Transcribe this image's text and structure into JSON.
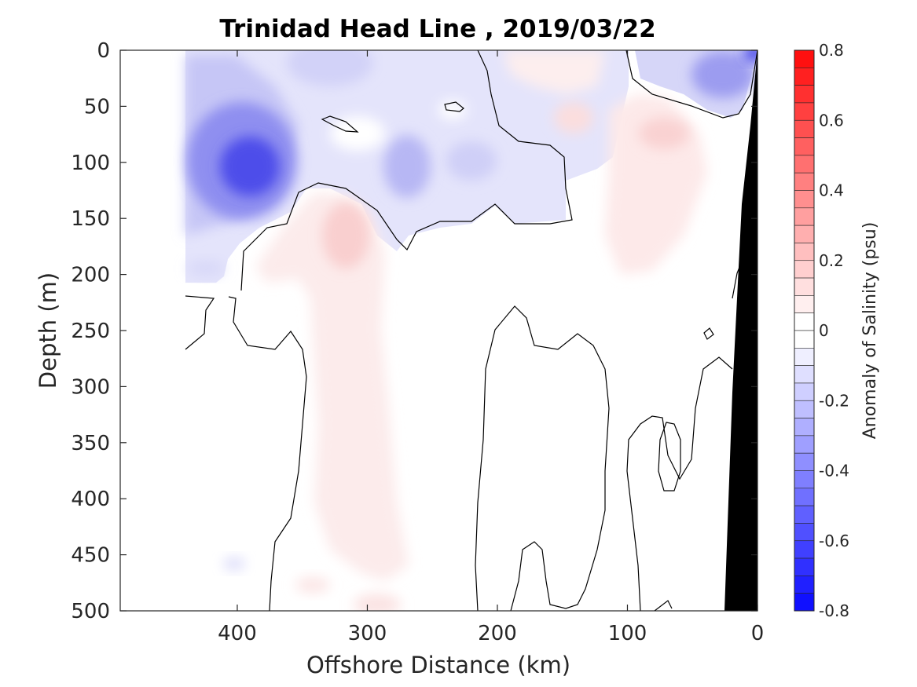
{
  "chart_data": {
    "type": "heatmap",
    "subtype": "filled-contour section",
    "title": "Trinidad Head Line , 2019/03/22",
    "xlabel": "Offshore Distance (km)",
    "ylabel": "Depth (m)",
    "xlim": [
      490,
      0
    ],
    "ylim": [
      0,
      500
    ],
    "x_reversed": true,
    "y_reversed": true,
    "xticks": [
      "400",
      "300",
      "200",
      "100",
      "0"
    ],
    "xtick_values": [
      400,
      300,
      200,
      100,
      0
    ],
    "yticks": [
      "0",
      "50",
      "100",
      "150",
      "200",
      "250",
      "300",
      "350",
      "400",
      "450",
      "500"
    ],
    "ytick_values": [
      0,
      50,
      100,
      150,
      200,
      250,
      300,
      350,
      400,
      450,
      500
    ],
    "colorbar": {
      "label": "Anomaly of Salinity (psu)",
      "ticks": [
        "0.8",
        "0.6",
        "0.4",
        "0.2",
        "0",
        "-0.2",
        "-0.4",
        "-0.6",
        "-0.8"
      ],
      "tick_values": [
        0.8,
        0.6,
        0.4,
        0.2,
        0,
        -0.2,
        -0.4,
        -0.6,
        -0.8
      ],
      "range": [
        -0.8,
        0.8
      ],
      "step": 0.05,
      "colormap": "blue-white-red",
      "color_negative": "#0000ff",
      "color_zero": "#ffffff",
      "color_positive": "#ff0000"
    },
    "data_extent_km": [
      443,
      0
    ],
    "features": [
      {
        "kind": "min",
        "x": 392,
        "depth": 110,
        "value": -0.45
      },
      {
        "kind": "min",
        "x": 270,
        "depth": 105,
        "value": -0.15
      },
      {
        "kind": "min",
        "x": 215,
        "depth": 100,
        "value": -0.1
      },
      {
        "kind": "min",
        "x": 310,
        "depth": 20,
        "value": -0.1
      },
      {
        "kind": "min",
        "x": 40,
        "depth": 30,
        "value": -0.25
      },
      {
        "kind": "min",
        "x": 3,
        "depth": 2,
        "value": -0.45
      },
      {
        "kind": "min",
        "x": 90,
        "depth": 2,
        "value": -0.12
      },
      {
        "kind": "min",
        "x": 430,
        "depth": 190,
        "value": -0.1
      },
      {
        "kind": "max",
        "x": 318,
        "depth": 170,
        "value": 0.12
      },
      {
        "kind": "max",
        "x": 300,
        "depth": 320,
        "value": 0.06
      },
      {
        "kind": "max",
        "x": 60,
        "depth": 85,
        "value": 0.1
      },
      {
        "kind": "max",
        "x": 140,
        "depth": 60,
        "value": 0.07
      },
      {
        "kind": "max",
        "x": 170,
        "depth": 15,
        "value": 0.05
      }
    ],
    "bathymetry": {
      "color": "#000000",
      "coast_x": 0,
      "bottom_x_at_500m": 25,
      "surface_x": 0
    }
  }
}
